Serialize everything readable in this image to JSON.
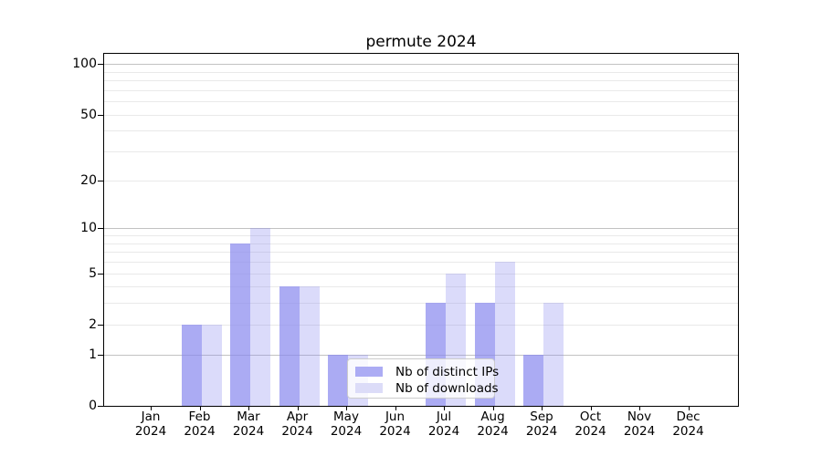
{
  "chart_data": {
    "type": "bar",
    "title": "permute 2024",
    "categories": [
      "Jan 2024",
      "Feb 2024",
      "Mar 2024",
      "Apr 2024",
      "May 2024",
      "Jun 2024",
      "Jul 2024",
      "Aug 2024",
      "Sep 2024",
      "Oct 2024",
      "Nov 2024",
      "Dec 2024"
    ],
    "months": [
      "Jan",
      "Feb",
      "Mar",
      "Apr",
      "May",
      "Jun",
      "Jul",
      "Aug",
      "Sep",
      "Oct",
      "Nov",
      "Dec"
    ],
    "year_label": "2024",
    "series": [
      {
        "name": "Nb of distinct IPs",
        "values": [
          0,
          2,
          8,
          4,
          1,
          0,
          3,
          3,
          1,
          0,
          0,
          0
        ]
      },
      {
        "name": "Nb of downloads",
        "values": [
          0,
          2,
          10,
          4,
          1,
          0,
          5,
          6,
          3,
          0,
          0,
          0
        ]
      }
    ],
    "xlabel": "",
    "ylabel": "",
    "y_scale": "log1p",
    "y_ticks": [
      0,
      1,
      2,
      5,
      10,
      20,
      50,
      100
    ],
    "major_gridlines": [
      1,
      10,
      100
    ],
    "minor_gridlines": [
      2,
      3,
      4,
      5,
      6,
      7,
      8,
      9,
      20,
      30,
      40,
      50,
      60,
      70,
      80,
      90
    ],
    "ylim": [
      0,
      115
    ],
    "grid": true,
    "legend_position": "lower center"
  },
  "colors": {
    "bar_fill_base": "#8888ee",
    "bar_distinct_ips": "rgba(136,136,238,0.7)",
    "bar_downloads": "rgba(136,136,238,0.3)",
    "legend_swatch_distinct_ips": "#acacf4",
    "legend_swatch_downloads": "#dcdcf8",
    "grid_major": "#c2c2c2",
    "grid_minor": "#e9e9e9",
    "axis": "#000000"
  }
}
